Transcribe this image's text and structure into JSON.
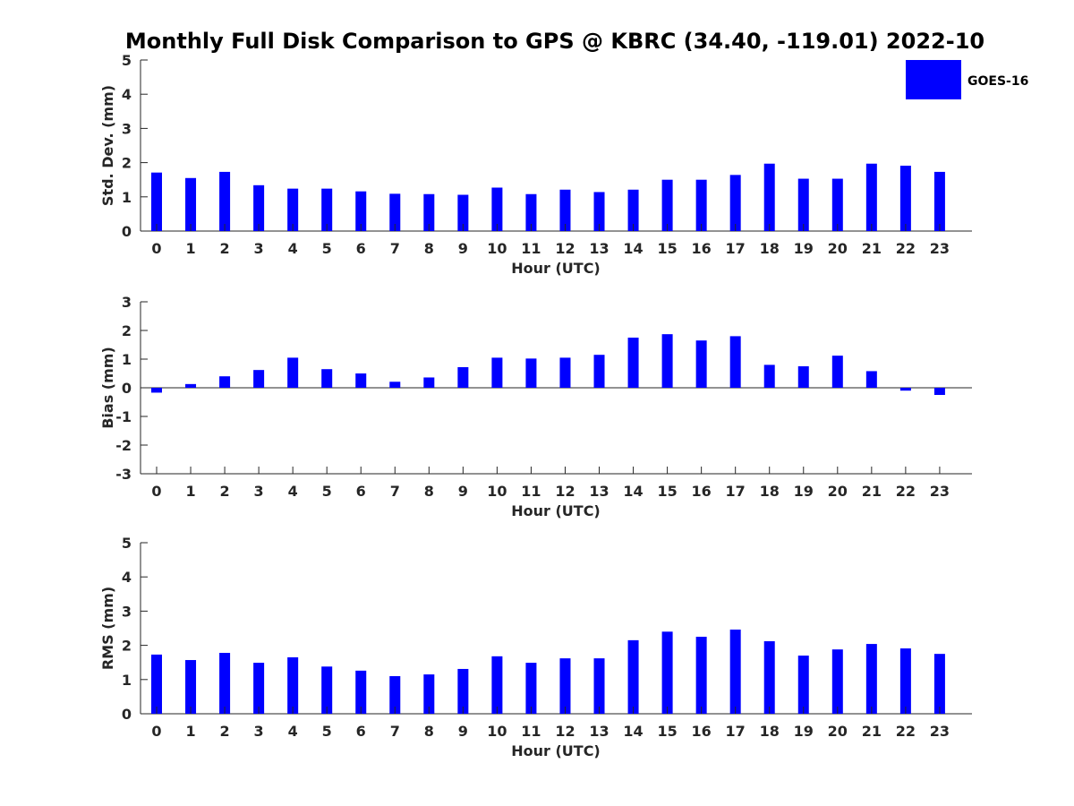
{
  "title": "Monthly Full Disk Comparison to GPS @ KBRC (34.40, -119.01) 2022-10",
  "legend": {
    "label": "GOES-16",
    "color": "#0000ff"
  },
  "chart_data": [
    {
      "type": "bar",
      "name": "std-dev",
      "xlabel": "Hour (UTC)",
      "ylabel": "Std. Dev. (mm)",
      "ylim": [
        0,
        5
      ],
      "yticks": [
        "0",
        "1",
        "2",
        "3",
        "4",
        "5"
      ],
      "categories": [
        "0",
        "1",
        "2",
        "3",
        "4",
        "5",
        "6",
        "7",
        "8",
        "9",
        "10",
        "11",
        "12",
        "13",
        "14",
        "15",
        "16",
        "17",
        "18",
        "19",
        "20",
        "21",
        "22",
        "23"
      ],
      "series": [
        {
          "name": "GOES-16",
          "values": [
            1.71,
            1.55,
            1.73,
            1.34,
            1.24,
            1.24,
            1.16,
            1.09,
            1.08,
            1.06,
            1.27,
            1.08,
            1.21,
            1.14,
            1.21,
            1.5,
            1.5,
            1.64,
            1.97,
            1.53,
            1.53,
            1.97,
            1.91,
            1.73
          ]
        }
      ]
    },
    {
      "type": "bar",
      "name": "bias",
      "xlabel": "Hour (UTC)",
      "ylabel": "Bias (mm)",
      "ylim": [
        -3,
        3
      ],
      "yticks": [
        "-3",
        "-2",
        "-1",
        "0",
        "1",
        "2",
        "3"
      ],
      "categories": [
        "0",
        "1",
        "2",
        "3",
        "4",
        "5",
        "6",
        "7",
        "8",
        "9",
        "10",
        "11",
        "12",
        "13",
        "14",
        "15",
        "16",
        "17",
        "18",
        "19",
        "20",
        "21",
        "22",
        "23"
      ],
      "series": [
        {
          "name": "GOES-16",
          "values": [
            -0.17,
            0.13,
            0.4,
            0.62,
            1.05,
            0.65,
            0.5,
            0.21,
            0.36,
            0.72,
            1.05,
            1.02,
            1.05,
            1.15,
            1.75,
            1.87,
            1.65,
            1.8,
            0.8,
            0.75,
            1.12,
            0.58,
            -0.1,
            -0.25
          ]
        }
      ]
    },
    {
      "type": "bar",
      "name": "rms",
      "xlabel": "Hour (UTC)",
      "ylabel": "RMS (mm)",
      "ylim": [
        0,
        5
      ],
      "yticks": [
        "0",
        "1",
        "2",
        "3",
        "4",
        "5"
      ],
      "categories": [
        "0",
        "1",
        "2",
        "3",
        "4",
        "5",
        "6",
        "7",
        "8",
        "9",
        "10",
        "11",
        "12",
        "13",
        "14",
        "15",
        "16",
        "17",
        "18",
        "19",
        "20",
        "21",
        "22",
        "23"
      ],
      "series": [
        {
          "name": "GOES-16",
          "values": [
            1.73,
            1.57,
            1.78,
            1.49,
            1.65,
            1.38,
            1.26,
            1.1,
            1.15,
            1.31,
            1.68,
            1.49,
            1.62,
            1.62,
            2.15,
            2.4,
            2.25,
            2.46,
            2.12,
            1.7,
            1.88,
            2.04,
            1.91,
            1.75
          ]
        }
      ]
    }
  ]
}
